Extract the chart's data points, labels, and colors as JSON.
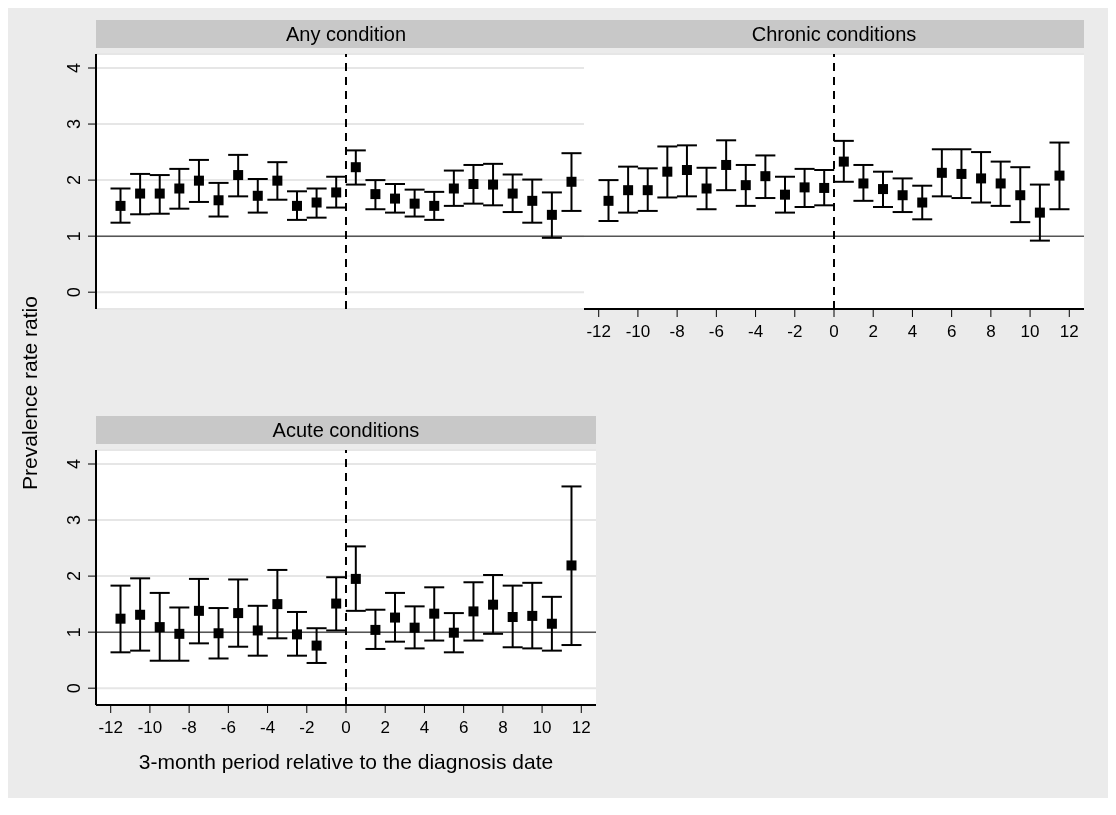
{
  "chart_data": [
    {
      "type": "scatter",
      "title": "Any condition",
      "x": [
        -11.5,
        -10.5,
        -9.5,
        -8.5,
        -7.5,
        -6.5,
        -5.5,
        -4.5,
        -3.5,
        -2.5,
        -1.5,
        -0.5,
        0.5,
        1.5,
        2.5,
        3.5,
        4.5,
        5.5,
        6.5,
        7.5,
        8.5,
        9.5,
        10.5,
        11.5
      ],
      "series": [
        {
          "color": "#000000",
          "values": [
            1.54,
            1.76,
            1.76,
            1.85,
            1.99,
            1.64,
            2.09,
            1.72,
            1.99,
            1.54,
            1.6,
            1.78,
            2.23,
            1.75,
            1.67,
            1.58,
            1.54,
            1.85,
            1.93,
            1.92,
            1.76,
            1.63,
            1.38,
            1.97
          ],
          "errors": [
            [
              1.24,
              1.85
            ],
            [
              1.39,
              2.11
            ],
            [
              1.4,
              2.09
            ],
            [
              1.49,
              2.2
            ],
            [
              1.61,
              2.36
            ],
            [
              1.35,
              1.95
            ],
            [
              1.71,
              2.45
            ],
            [
              1.42,
              2.02
            ],
            [
              1.65,
              2.32
            ],
            [
              1.29,
              1.8
            ],
            [
              1.33,
              1.85
            ],
            [
              1.51,
              2.06
            ],
            [
              1.92,
              2.53
            ],
            [
              1.48,
              2.0
            ],
            [
              1.42,
              1.93
            ],
            [
              1.35,
              1.83
            ],
            [
              1.29,
              1.79
            ],
            [
              1.54,
              2.17
            ],
            [
              1.58,
              2.27
            ],
            [
              1.55,
              2.29
            ],
            [
              1.43,
              2.1
            ],
            [
              1.24,
              2.01
            ],
            [
              0.97,
              1.78
            ],
            [
              1.45,
              2.48
            ]
          ]
        }
      ],
      "xlim": [
        -12.75,
        12.75
      ],
      "ylim": [
        -0.3,
        4.25
      ],
      "yticks": [
        0,
        1,
        2,
        3,
        4
      ],
      "grid": "y",
      "marker": "square",
      "tick_labels": "y",
      "ref_lines": [
        {
          "axis": "y",
          "value": 1,
          "line_style": "solid"
        },
        {
          "axis": "x",
          "value": 0,
          "line_style": "dashed"
        }
      ]
    },
    {
      "type": "scatter",
      "title": "Chronic conditions",
      "x": [
        -11.5,
        -10.5,
        -9.5,
        -8.5,
        -7.5,
        -6.5,
        -5.5,
        -4.5,
        -3.5,
        -2.5,
        -1.5,
        -0.5,
        0.5,
        1.5,
        2.5,
        3.5,
        4.5,
        5.5,
        6.5,
        7.5,
        8.5,
        9.5,
        10.5,
        11.5
      ],
      "series": [
        {
          "color": "#000000",
          "values": [
            1.63,
            1.82,
            1.82,
            2.15,
            2.18,
            1.85,
            2.27,
            1.91,
            2.07,
            1.74,
            1.87,
            1.86,
            2.33,
            1.94,
            1.84,
            1.73,
            1.6,
            2.13,
            2.11,
            2.03,
            1.94,
            1.73,
            1.42,
            2.08
          ],
          "errors": [
            [
              1.27,
              2.0
            ],
            [
              1.42,
              2.24
            ],
            [
              1.45,
              2.21
            ],
            [
              1.69,
              2.6
            ],
            [
              1.71,
              2.62
            ],
            [
              1.48,
              2.22
            ],
            [
              1.82,
              2.71
            ],
            [
              1.54,
              2.27
            ],
            [
              1.68,
              2.44
            ],
            [
              1.42,
              2.06
            ],
            [
              1.52,
              2.2
            ],
            [
              1.55,
              2.18
            ],
            [
              1.97,
              2.7
            ],
            [
              1.63,
              2.27
            ],
            [
              1.52,
              2.15
            ],
            [
              1.43,
              2.03
            ],
            [
              1.3,
              1.9
            ],
            [
              1.71,
              2.55
            ],
            [
              1.68,
              2.55
            ],
            [
              1.6,
              2.5
            ],
            [
              1.54,
              2.33
            ],
            [
              1.25,
              2.23
            ],
            [
              0.92,
              1.92
            ],
            [
              1.48,
              2.67
            ]
          ]
        }
      ],
      "xlim": [
        -12.75,
        12.75
      ],
      "xticks": [
        -12,
        -10,
        -8,
        -6,
        -4,
        -2,
        0,
        2,
        4,
        6,
        8,
        10,
        12
      ],
      "ylim": [
        -0.3,
        4.25
      ],
      "yticks": [
        0,
        1,
        2,
        3,
        4
      ],
      "grid": "y",
      "marker": "square",
      "tick_labels": "x",
      "ref_lines": [
        {
          "axis": "y",
          "value": 1,
          "line_style": "solid"
        },
        {
          "axis": "x",
          "value": 0,
          "line_style": "dashed"
        }
      ]
    },
    {
      "type": "scatter",
      "title": "Acute conditions",
      "xlabel": "3-month period relative to the diagnosis date",
      "ylabel": "Prevalence rate ratio",
      "x": [
        -11.5,
        -10.5,
        -9.5,
        -8.5,
        -7.5,
        -6.5,
        -5.5,
        -4.5,
        -3.5,
        -2.5,
        -1.5,
        -0.5,
        0.5,
        1.5,
        2.5,
        3.5,
        4.5,
        5.5,
        6.5,
        7.5,
        8.5,
        9.5,
        10.5,
        11.5
      ],
      "series": [
        {
          "color": "#000000",
          "values": [
            1.24,
            1.31,
            1.09,
            0.97,
            1.38,
            0.98,
            1.34,
            1.03,
            1.5,
            0.96,
            0.76,
            1.51,
            1.95,
            1.04,
            1.26,
            1.08,
            1.33,
            0.99,
            1.37,
            1.49,
            1.27,
            1.29,
            1.15,
            2.19
          ],
          "errors": [
            [
              0.64,
              1.83
            ],
            [
              0.67,
              1.96
            ],
            [
              0.49,
              1.7
            ],
            [
              0.49,
              1.44
            ],
            [
              0.8,
              1.95
            ],
            [
              0.53,
              1.43
            ],
            [
              0.74,
              1.94
            ],
            [
              0.58,
              1.47
            ],
            [
              0.89,
              2.11
            ],
            [
              0.58,
              1.36
            ],
            [
              0.45,
              1.07
            ],
            [
              1.03,
              1.98
            ],
            [
              1.38,
              2.53
            ],
            [
              0.7,
              1.4
            ],
            [
              0.83,
              1.7
            ],
            [
              0.71,
              1.46
            ],
            [
              0.85,
              1.8
            ],
            [
              0.64,
              1.34
            ],
            [
              0.85,
              1.89
            ],
            [
              0.97,
              2.02
            ],
            [
              0.73,
              1.83
            ],
            [
              0.71,
              1.88
            ],
            [
              0.67,
              1.63
            ],
            [
              0.77,
              3.6
            ]
          ]
        }
      ],
      "xlim": [
        -12.75,
        12.75
      ],
      "xticks": [
        -12,
        -10,
        -8,
        -6,
        -4,
        -2,
        0,
        2,
        4,
        6,
        8,
        10,
        12
      ],
      "ylim": [
        -0.3,
        4.25
      ],
      "yticks": [
        0,
        1,
        2,
        3,
        4
      ],
      "grid": "y",
      "marker": "square",
      "ref_lines": [
        {
          "axis": "y",
          "value": 1,
          "line_style": "solid"
        },
        {
          "axis": "x",
          "value": 0,
          "line_style": "dashed"
        }
      ]
    }
  ]
}
